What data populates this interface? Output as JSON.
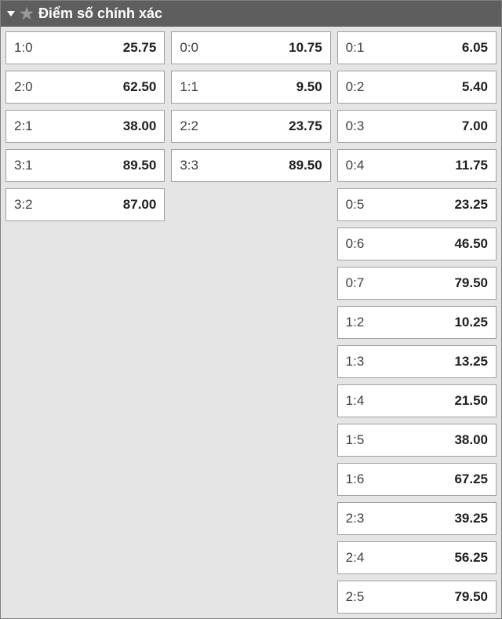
{
  "header": {
    "title": "Điểm số chính xác"
  },
  "columns": [
    [
      {
        "score": "1:0",
        "odds": "25.75"
      },
      {
        "score": "2:0",
        "odds": "62.50"
      },
      {
        "score": "2:1",
        "odds": "38.00"
      },
      {
        "score": "3:1",
        "odds": "89.50"
      },
      {
        "score": "3:2",
        "odds": "87.00"
      }
    ],
    [
      {
        "score": "0:0",
        "odds": "10.75"
      },
      {
        "score": "1:1",
        "odds": "9.50"
      },
      {
        "score": "2:2",
        "odds": "23.75"
      },
      {
        "score": "3:3",
        "odds": "89.50"
      }
    ],
    [
      {
        "score": "0:1",
        "odds": "6.05"
      },
      {
        "score": "0:2",
        "odds": "5.40"
      },
      {
        "score": "0:3",
        "odds": "7.00"
      },
      {
        "score": "0:4",
        "odds": "11.75"
      },
      {
        "score": "0:5",
        "odds": "23.25"
      },
      {
        "score": "0:6",
        "odds": "46.50"
      },
      {
        "score": "0:7",
        "odds": "79.50"
      },
      {
        "score": "1:2",
        "odds": "10.25"
      },
      {
        "score": "1:3",
        "odds": "13.25"
      },
      {
        "score": "1:4",
        "odds": "21.50"
      },
      {
        "score": "1:5",
        "odds": "38.00"
      },
      {
        "score": "1:6",
        "odds": "67.25"
      },
      {
        "score": "2:3",
        "odds": "39.25"
      },
      {
        "score": "2:4",
        "odds": "56.25"
      },
      {
        "score": "2:5",
        "odds": "79.50"
      }
    ]
  ],
  "colors": {
    "header_bg": "#5e5e5e",
    "header_text": "#ffffff",
    "panel_bg": "#e5e5e5",
    "cell_bg": "#ffffff",
    "cell_border": "#a0a0a0",
    "score_text": "#404040",
    "odds_text": "#202020",
    "star": "#9a9a9a"
  }
}
